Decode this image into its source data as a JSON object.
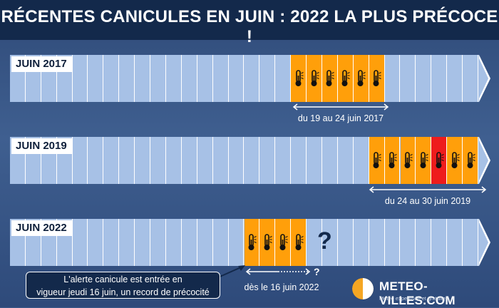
{
  "title": "RÉCENTES CANICULES EN JUIN : 2022 LA PLUS PRÉCOCE !",
  "rows": [
    {
      "year_label": "JUIN 2017",
      "heat_days": [
        19,
        20,
        21,
        22,
        23,
        24
      ],
      "red_days": [],
      "range_text": "du 19 au 24 juin 2017"
    },
    {
      "year_label": "JUIN 2019",
      "heat_days": [
        24,
        25,
        26,
        27,
        28,
        29,
        30
      ],
      "red_days": [
        28
      ],
      "range_text": "du 24 au 30 juin 2019"
    },
    {
      "year_label": "JUIN 2022",
      "heat_days": [
        16,
        17,
        18,
        19
      ],
      "red_days": [],
      "range_text": "dès le 16 juin 2022",
      "unknown_mark": "?",
      "arrow_mark": "?"
    }
  ],
  "callout_text_line1": "L'alerte canicule  est entrée en",
  "callout_text_line2": "vigueur jeudi 16 juin, un record de précocité",
  "logo": {
    "name": "METEO-VILLES.COM",
    "tagline": "Météo expertisée et gratuite"
  },
  "colors": {
    "heat": "#ff9f0a",
    "heat_red": "#ee1c1c",
    "day_cell": "#a7c1e6",
    "title_bar": "#13294b"
  }
}
